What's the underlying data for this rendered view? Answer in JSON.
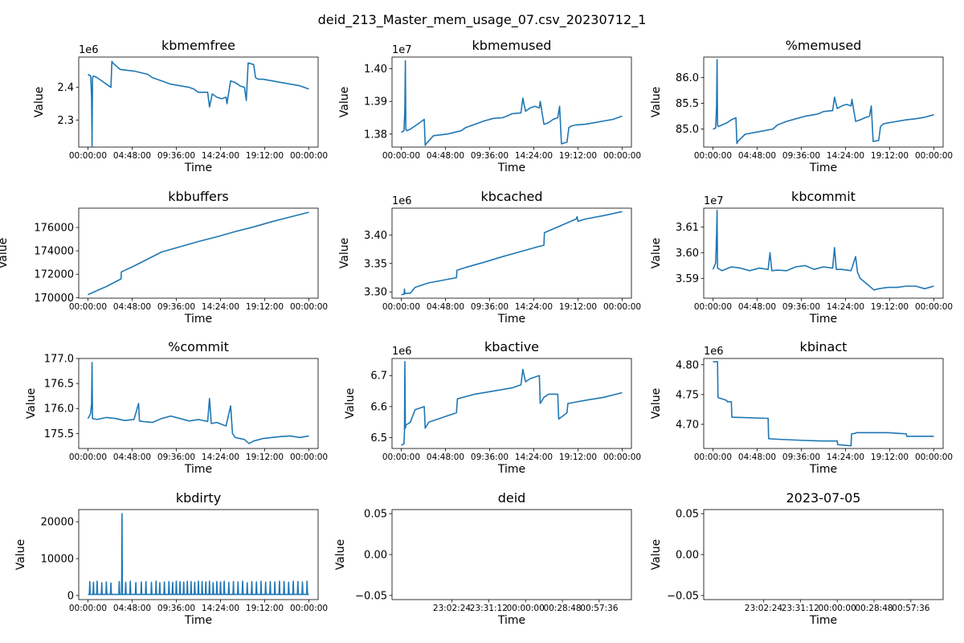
{
  "figure": {
    "title": "deid_213_Master_mem_usage_07.csv_20230712_1",
    "line_color": "#1f77b4"
  },
  "chart_data": [
    {
      "type": "line",
      "title": "kbmemfree",
      "xlabel": "Time",
      "ylabel": "Value",
      "multiplier": "1e6",
      "ylim": [
        2.217,
        2.493
      ],
      "yticks": [
        {
          "v": 2.3,
          "label": "2.3"
        },
        {
          "v": 2.4,
          "label": "2.4"
        }
      ],
      "xlim": [
        -1,
        25
      ],
      "xticks": [
        "00:00:00",
        "04:48:00",
        "09:36:00",
        "14:24:00",
        "19:12:00",
        "00:00:00"
      ],
      "x": [
        0,
        0.3,
        0.4,
        0.45,
        0.5,
        0.6,
        1.0,
        1.5,
        2.0,
        2.5,
        2.6,
        2.7,
        3.5,
        5.0,
        6.5,
        7.0,
        8.0,
        9.0,
        10.0,
        11.0,
        11.5,
        12.0,
        13.0,
        13.2,
        13.5,
        14.0,
        14.5,
        15.0,
        15.1,
        15.5,
        16.0,
        16.5,
        17.0,
        17.2,
        17.4,
        18.0,
        18.2,
        18.5,
        19.0,
        20.0,
        21.0,
        22.0,
        23.0,
        24.0
      ],
      "y": [
        2.44,
        2.435,
        2.37,
        2.22,
        2.43,
        2.435,
        2.43,
        2.42,
        2.41,
        2.4,
        2.48,
        2.475,
        2.455,
        2.45,
        2.44,
        2.43,
        2.42,
        2.41,
        2.405,
        2.4,
        2.395,
        2.385,
        2.385,
        2.34,
        2.38,
        2.37,
        2.365,
        2.37,
        2.35,
        2.42,
        2.415,
        2.405,
        2.4,
        2.36,
        2.475,
        2.47,
        2.43,
        2.425,
        2.425,
        2.42,
        2.415,
        2.41,
        2.405,
        2.395
      ]
    },
    {
      "type": "line",
      "title": "kbmemused",
      "xlabel": "Time",
      "ylabel": "Value",
      "multiplier": "1e7",
      "ylim": [
        1.376,
        1.4036
      ],
      "yticks": [
        {
          "v": 1.38,
          "label": "1.38"
        },
        {
          "v": 1.39,
          "label": "1.39"
        },
        {
          "v": 1.4,
          "label": "1.40"
        }
      ],
      "xlim": [
        -1,
        25
      ],
      "xticks": [
        "00:00:00",
        "04:48:00",
        "09:36:00",
        "14:24:00",
        "19:12:00",
        "00:00:00"
      ],
      "x": [
        0,
        0.3,
        0.4,
        0.45,
        0.5,
        0.6,
        1.0,
        1.5,
        2.0,
        2.5,
        2.6,
        2.7,
        3.5,
        5.0,
        6.5,
        7.0,
        8.0,
        9.0,
        10.0,
        11.0,
        11.5,
        12.0,
        13.0,
        13.2,
        13.5,
        14.0,
        14.5,
        15.0,
        15.1,
        15.5,
        16.0,
        16.5,
        17.0,
        17.2,
        17.4,
        18.0,
        18.2,
        18.5,
        19.0,
        20.0,
        21.0,
        22.0,
        23.0,
        24.0
      ],
      "y": [
        1.3805,
        1.381,
        1.388,
        1.4025,
        1.3815,
        1.381,
        1.3815,
        1.3825,
        1.3835,
        1.3845,
        1.3765,
        1.377,
        1.3795,
        1.38,
        1.381,
        1.382,
        1.383,
        1.384,
        1.3848,
        1.385,
        1.3855,
        1.3862,
        1.3865,
        1.391,
        1.387,
        1.388,
        1.3885,
        1.388,
        1.39,
        1.383,
        1.3835,
        1.3845,
        1.385,
        1.3885,
        1.377,
        1.3775,
        1.382,
        1.3825,
        1.3828,
        1.383,
        1.3835,
        1.384,
        1.3845,
        1.3855
      ]
    },
    {
      "type": "line",
      "title": "%memused",
      "xlabel": "Time",
      "ylabel": "Value",
      "multiplier": "",
      "ylim": [
        84.65,
        86.4
      ],
      "yticks": [
        {
          "v": 85.0,
          "label": "85.0"
        },
        {
          "v": 85.5,
          "label": "85.5"
        },
        {
          "v": 86.0,
          "label": "86.0"
        }
      ],
      "xlim": [
        -1,
        25
      ],
      "xticks": [
        "00:00:00",
        "04:48:00",
        "09:36:00",
        "14:24:00",
        "19:12:00",
        "00:00:00"
      ],
      "x": [
        0,
        0.3,
        0.4,
        0.45,
        0.5,
        0.6,
        1.0,
        1.5,
        2.0,
        2.5,
        2.6,
        2.7,
        3.5,
        5.0,
        6.5,
        7.0,
        8.0,
        9.0,
        10.0,
        11.0,
        11.5,
        12.0,
        13.0,
        13.2,
        13.5,
        14.0,
        14.5,
        15.0,
        15.1,
        15.5,
        16.0,
        16.5,
        17.0,
        17.2,
        17.4,
        18.0,
        18.2,
        18.5,
        19.0,
        20.0,
        21.0,
        22.0,
        23.0,
        24.0
      ],
      "y": [
        85.0,
        85.02,
        85.45,
        86.35,
        85.08,
        85.05,
        85.08,
        85.12,
        85.18,
        85.22,
        84.72,
        84.76,
        84.9,
        84.95,
        85.0,
        85.08,
        85.15,
        85.2,
        85.25,
        85.28,
        85.3,
        85.34,
        85.36,
        85.62,
        85.4,
        85.45,
        85.48,
        85.45,
        85.58,
        85.15,
        85.18,
        85.22,
        85.25,
        85.45,
        84.76,
        84.78,
        85.05,
        85.1,
        85.12,
        85.15,
        85.18,
        85.2,
        85.23,
        85.28
      ]
    },
    {
      "type": "line",
      "title": "kbbuffers",
      "xlabel": "Time",
      "ylabel": "Value",
      "multiplier": "",
      "ylim": [
        169950,
        177650
      ],
      "yticks": [
        {
          "v": 170000,
          "label": "170000"
        },
        {
          "v": 172000,
          "label": "172000"
        },
        {
          "v": 174000,
          "label": "174000"
        },
        {
          "v": 176000,
          "label": "176000"
        }
      ],
      "xlim": [
        -1,
        25
      ],
      "xticks": [
        "00:00:00",
        "04:48:00",
        "09:36:00",
        "14:24:00",
        "19:12:00",
        "00:00:00"
      ],
      "x": [
        0,
        1,
        2,
        3.6,
        3.62,
        5,
        7,
        8,
        10,
        12,
        14,
        16,
        18,
        20,
        22,
        24
      ],
      "y": [
        170250,
        170600,
        170950,
        171600,
        172200,
        172700,
        173500,
        173900,
        174350,
        174800,
        175200,
        175650,
        176050,
        176500,
        176900,
        177300
      ]
    },
    {
      "type": "line",
      "title": "kbcached",
      "xlabel": "Time",
      "ylabel": "Value",
      "multiplier": "1e6",
      "ylim": [
        3.289,
        3.447
      ],
      "yticks": [
        {
          "v": 3.3,
          "label": "3.30"
        },
        {
          "v": 3.35,
          "label": "3.35"
        },
        {
          "v": 3.4,
          "label": "3.40"
        }
      ],
      "xlim": [
        -1,
        25
      ],
      "xticks": [
        "00:00:00",
        "04:48:00",
        "09:36:00",
        "14:24:00",
        "19:12:00",
        "00:00:00"
      ],
      "x": [
        0,
        0.3,
        0.35,
        0.4,
        1.0,
        1.5,
        3,
        6,
        6.05,
        7,
        9,
        11,
        13,
        15,
        15.5,
        15.55,
        17,
        19,
        19.1,
        19.2,
        20,
        22,
        24
      ],
      "y": [
        3.295,
        3.296,
        3.305,
        3.297,
        3.298,
        3.308,
        3.316,
        3.325,
        3.338,
        3.343,
        3.352,
        3.362,
        3.371,
        3.38,
        3.382,
        3.404,
        3.414,
        3.428,
        3.432,
        3.424,
        3.428,
        3.434,
        3.441
      ]
    },
    {
      "type": "line",
      "title": "kbcommit",
      "xlabel": "Time",
      "ylabel": "Value",
      "multiplier": "1e7",
      "ylim": [
        3.5823,
        3.6173
      ],
      "yticks": [
        {
          "v": 3.59,
          "label": "3.59"
        },
        {
          "v": 3.6,
          "label": "3.60"
        },
        {
          "v": 3.61,
          "label": "3.61"
        }
      ],
      "xlim": [
        -1,
        25
      ],
      "xticks": [
        "00:00:00",
        "04:48:00",
        "09:36:00",
        "14:24:00",
        "19:12:00",
        "00:00:00"
      ],
      "x": [
        0,
        0.3,
        0.4,
        0.45,
        0.5,
        1,
        2,
        3,
        4,
        5,
        6,
        6.2,
        6.4,
        7,
        8,
        9,
        10,
        11,
        12,
        13,
        13.2,
        13.4,
        14,
        15,
        15.5,
        15.7,
        16,
        17,
        17.5,
        18,
        19,
        20,
        21,
        22,
        23,
        24
      ],
      "y": [
        3.5935,
        3.596,
        3.607,
        3.6165,
        3.594,
        3.593,
        3.5945,
        3.594,
        3.593,
        3.594,
        3.5935,
        3.6,
        3.593,
        3.5932,
        3.593,
        3.5945,
        3.595,
        3.5935,
        3.5945,
        3.594,
        3.602,
        3.5935,
        3.5935,
        3.593,
        3.5985,
        3.5925,
        3.59,
        3.587,
        3.5855,
        3.586,
        3.5865,
        3.5865,
        3.587,
        3.587,
        3.586,
        3.587
      ]
    },
    {
      "type": "line",
      "title": "%commit",
      "xlabel": "Time",
      "ylabel": "Value",
      "multiplier": "",
      "ylim": [
        175.2,
        177.0
      ],
      "yticks": [
        {
          "v": 175.5,
          "label": "175.5"
        },
        {
          "v": 176.0,
          "label": "176.0"
        },
        {
          "v": 176.5,
          "label": "176.5"
        },
        {
          "v": 177.0,
          "label": "177.0"
        }
      ],
      "xlim": [
        -1,
        25
      ],
      "xticks": [
        "00:00:00",
        "04:48:00",
        "09:36:00",
        "14:24:00",
        "19:12:00",
        "00:00:00"
      ],
      "x": [
        0,
        0.3,
        0.4,
        0.45,
        0.5,
        1,
        2,
        3,
        4,
        5,
        5.5,
        5.6,
        6,
        7,
        8,
        9,
        10,
        11,
        12,
        13,
        13.2,
        13.4,
        14,
        15,
        15.5,
        15.7,
        16,
        17,
        17.5,
        18,
        19,
        20,
        21,
        22,
        23,
        24
      ],
      "y": [
        175.8,
        175.9,
        176.1,
        176.92,
        175.8,
        175.78,
        175.82,
        175.8,
        175.76,
        175.78,
        176.1,
        175.75,
        175.74,
        175.72,
        175.8,
        175.85,
        175.8,
        175.75,
        175.78,
        175.74,
        176.2,
        175.7,
        175.72,
        175.65,
        176.05,
        175.5,
        175.42,
        175.38,
        175.3,
        175.35,
        175.4,
        175.42,
        175.44,
        175.45,
        175.42,
        175.45
      ]
    },
    {
      "type": "line",
      "title": "kbactive",
      "xlabel": "Time",
      "ylabel": "Value",
      "multiplier": "1e6",
      "ylim": [
        6.465,
        6.755
      ],
      "yticks": [
        {
          "v": 6.5,
          "label": "6.5"
        },
        {
          "v": 6.6,
          "label": "6.6"
        },
        {
          "v": 6.7,
          "label": "6.7"
        }
      ],
      "xlim": [
        -1,
        25
      ],
      "xticks": [
        "00:00:00",
        "04:48:00",
        "09:36:00",
        "14:24:00",
        "19:12:00",
        "00:00:00"
      ],
      "x": [
        0,
        0.3,
        0.35,
        0.4,
        0.45,
        0.5,
        1.0,
        1.5,
        2.5,
        2.6,
        3,
        5,
        6,
        6.1,
        8,
        10,
        12,
        13,
        13.2,
        13.5,
        14,
        15,
        15.1,
        15.5,
        16,
        17,
        17.1,
        18,
        18.1,
        19,
        20,
        22,
        24
      ],
      "y": [
        6.475,
        6.48,
        6.52,
        6.745,
        6.53,
        6.54,
        6.55,
        6.59,
        6.6,
        6.53,
        6.55,
        6.57,
        6.58,
        6.625,
        6.64,
        6.65,
        6.66,
        6.67,
        6.72,
        6.68,
        6.69,
        6.7,
        6.61,
        6.63,
        6.64,
        6.64,
        6.56,
        6.58,
        6.61,
        6.615,
        6.62,
        6.63,
        6.645
      ]
    },
    {
      "type": "line",
      "title": "kbinact",
      "xlabel": "Time",
      "ylabel": "Value",
      "multiplier": "1e6",
      "ylim": [
        4.6595,
        4.8105
      ],
      "yticks": [
        {
          "v": 4.7,
          "label": "4.70"
        },
        {
          "v": 4.75,
          "label": "4.75"
        },
        {
          "v": 4.8,
          "label": "4.80"
        }
      ],
      "xlim": [
        -1,
        25
      ],
      "xticks": [
        "00:00:00",
        "04:48:00",
        "09:36:00",
        "14:24:00",
        "19:12:00",
        "00:00:00"
      ],
      "x": [
        0,
        0.5,
        0.55,
        1.5,
        1.55,
        2.0,
        2.05,
        6,
        6.05,
        7,
        10,
        12,
        13.5,
        13.55,
        15,
        15.05,
        15.5,
        15.55,
        19,
        20,
        21,
        21.05,
        24
      ],
      "y": [
        4.805,
        4.805,
        4.745,
        4.74,
        4.738,
        4.738,
        4.712,
        4.71,
        4.676,
        4.675,
        4.673,
        4.672,
        4.672,
        4.666,
        4.664,
        4.684,
        4.685,
        4.686,
        4.686,
        4.685,
        4.684,
        4.68,
        4.68
      ]
    },
    {
      "type": "line",
      "title": "kbdirty",
      "xlabel": "Time",
      "ylabel": "Value",
      "multiplier": "",
      "ylim": [
        -1100,
        23300
      ],
      "yticks": [
        {
          "v": 0,
          "label": "0"
        },
        {
          "v": 10000,
          "label": "10000"
        },
        {
          "v": 20000,
          "label": "20000"
        }
      ],
      "xlim": [
        -1,
        25
      ],
      "xticks": [
        "00:00:00",
        "04:48:00",
        "09:36:00",
        "14:24:00",
        "19:12:00",
        "00:00:00"
      ],
      "spike_times": [
        0.2,
        0.6,
        1.0,
        1.5,
        2.0,
        2.5,
        3.4,
        4.1,
        4.6,
        5.2,
        5.8,
        6.3,
        6.9,
        7.4,
        7.8,
        8.3,
        8.8,
        9.2,
        9.6,
        10.0,
        10.4,
        10.8,
        11.2,
        11.6,
        12.0,
        12.4,
        12.8,
        13.2,
        13.6,
        14.0,
        14.4,
        14.8,
        15.3,
        15.8,
        16.3,
        16.8,
        17.3,
        17.8,
        18.3,
        18.8,
        19.3,
        19.8,
        20.3,
        20.8,
        21.3,
        21.8,
        22.3,
        22.8,
        23.3,
        23.8
      ],
      "spike_values": [
        3800,
        3600,
        3900,
        3500,
        3700,
        3400,
        3800,
        3600,
        3900,
        3500,
        3700,
        3800,
        3600,
        3900,
        3500,
        3700,
        3800,
        3600,
        3900,
        3800,
        3700,
        3900,
        3800,
        3600,
        3900,
        3800,
        3700,
        3900,
        3500,
        3800,
        3700,
        3900,
        3600,
        3800,
        3700,
        3900,
        3500,
        3800,
        3700,
        3900,
        3600,
        3800,
        3700,
        3900,
        3800,
        3600,
        3900,
        3800,
        3700,
        3900
      ],
      "big_spike": {
        "x": 3.7,
        "y": 22200
      },
      "baseline": 300
    },
    {
      "type": "line",
      "title": "deid",
      "xlabel": "Time",
      "ylabel": "Value",
      "multiplier": "",
      "ylim": [
        -0.055,
        0.055
      ],
      "yticks": [
        {
          "v": -0.05,
          "label": "−0.05"
        },
        {
          "v": 0.0,
          "label": "0.00"
        },
        {
          "v": 0.05,
          "label": "0.05"
        }
      ],
      "xlim": [
        -1,
        25
      ],
      "xticks_pos": [
        5.5,
        9.5,
        13.5,
        17.5,
        21.5
      ],
      "xticks": [
        "23:02:24",
        "23:31:12",
        "00:00:00",
        "00:28:48",
        "00:57:36"
      ],
      "x": [],
      "y": []
    },
    {
      "type": "line",
      "title": "2023-07-05",
      "xlabel": "Time",
      "ylabel": "Value",
      "multiplier": "",
      "ylim": [
        -0.055,
        0.055
      ],
      "yticks": [
        {
          "v": -0.05,
          "label": "−0.05"
        },
        {
          "v": 0.0,
          "label": "0.00"
        },
        {
          "v": 0.05,
          "label": "0.05"
        }
      ],
      "xlim": [
        -1,
        25
      ],
      "xticks_pos": [
        5.5,
        9.5,
        13.5,
        17.5,
        21.5
      ],
      "xticks": [
        "23:02:24",
        "23:31:12",
        "00:00:00",
        "00:28:48",
        "00:57:36"
      ],
      "x": [],
      "y": []
    }
  ]
}
